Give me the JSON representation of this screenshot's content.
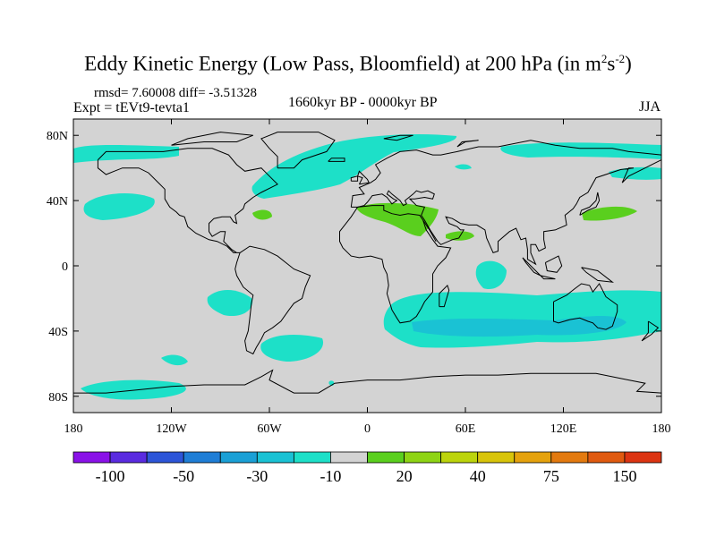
{
  "title": {
    "main": "Eddy Kinetic Energy (Low Pass, Bloomfield) at 200 hPa (in m",
    "sup1": "2",
    "mid": "s",
    "sup2": "-2",
    "end": ")"
  },
  "stats_label": "rmsd= 7.60008 diff= -3.51328",
  "experiment_label": "Expt = tEVt9-tevta1",
  "period_label": "1660kyr BP - 0000kyr BP",
  "season_label": "JJA",
  "map": {
    "projection": "cylindrical-equidistant",
    "lon_range": [
      -180,
      180
    ],
    "lat_range": [
      -90,
      90
    ],
    "background_color": "#d3d3d3",
    "coastline_color": "#000000",
    "lat_ticks": [
      {
        "lat": 80,
        "label": "80N"
      },
      {
        "lat": 40,
        "label": "40N"
      },
      {
        "lat": 0,
        "label": "0"
      },
      {
        "lat": -40,
        "label": "40S"
      },
      {
        "lat": -80,
        "label": "80S"
      }
    ],
    "lon_ticks": [
      {
        "lon": -180,
        "label": "180"
      },
      {
        "lon": -120,
        "label": "120W"
      },
      {
        "lon": -60,
        "label": "60W"
      },
      {
        "lon": 0,
        "label": "0"
      },
      {
        "lon": 60,
        "label": "60E"
      },
      {
        "lon": 120,
        "label": "120E"
      },
      {
        "lon": 180,
        "label": "180"
      }
    ]
  },
  "colorbar": {
    "colors": [
      "#8a12e8",
      "#5a2be0",
      "#2d55d8",
      "#1f7ed6",
      "#1aa0d6",
      "#1ac2d4",
      "#1de0c8",
      "#d3d3d3",
      "#5acf1e",
      "#8ed414",
      "#bcd40c",
      "#d8c40a",
      "#e5a20d",
      "#e37a0f",
      "#e05a10",
      "#dc3412"
    ],
    "labels": [
      {
        "after": 1,
        "text": "-100"
      },
      {
        "after": 3,
        "text": "-50"
      },
      {
        "after": 5,
        "text": "-30"
      },
      {
        "after": 7,
        "text": "-10"
      },
      {
        "after": 9,
        "text": "20"
      },
      {
        "after": 11,
        "text": "40"
      },
      {
        "after": 13,
        "text": "75"
      },
      {
        "after": 15,
        "text": "150"
      }
    ]
  }
}
